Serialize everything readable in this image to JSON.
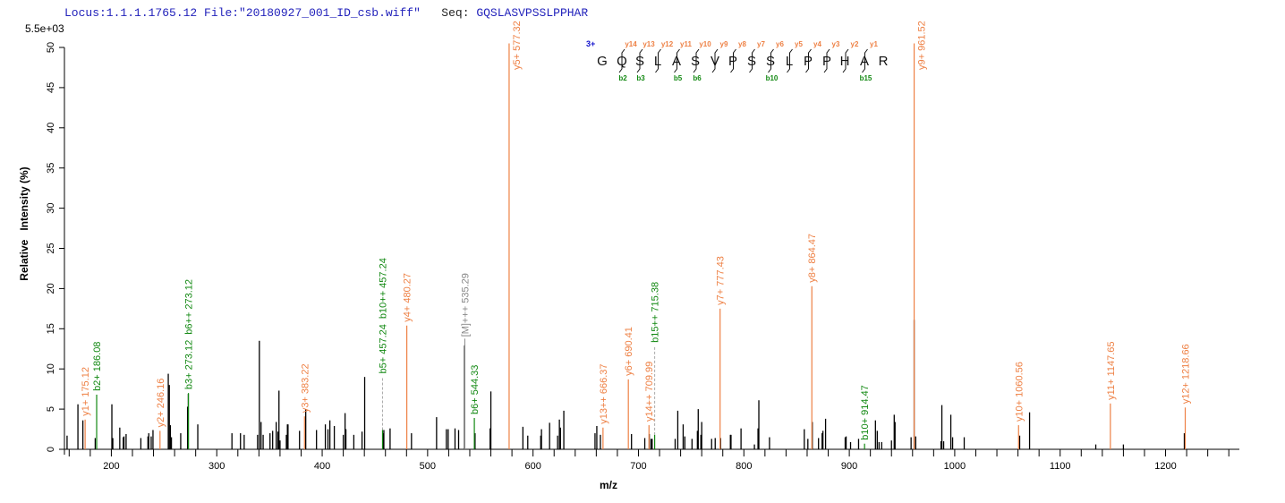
{
  "header": {
    "locus": "Locus:1.1.1.1765.12",
    "file": "File:\"20180927_001_ID_csb.wiff\"",
    "seq_label": "Seq:",
    "seq": "GQSLASVPSSLPPHAR"
  },
  "colors": {
    "y_ion": "#ee8044",
    "b_ion": "#118811",
    "precursor": "#888888",
    "peak": "#000000",
    "header": "#2222bb",
    "charge": "#1111cc"
  },
  "peptide": {
    "charge": "3+",
    "residues": [
      "G",
      "Q",
      "S",
      "L",
      "A",
      "S",
      "V",
      "P",
      "S",
      "S",
      "L",
      "P",
      "P",
      "H",
      "A",
      "R"
    ],
    "y_labels": [
      "y14",
      "y13",
      "y12",
      "y11",
      "y10",
      "y9",
      "y8",
      "y7",
      "y6",
      "y5",
      "y4",
      "y3",
      "y2",
      "y1"
    ],
    "b_labels": [
      "b2",
      "b3",
      "",
      "b5",
      "b6",
      "",
      "",
      "",
      "b10",
      "",
      "",
      "",
      "",
      "b15"
    ]
  },
  "chart_data": {
    "type": "bar",
    "title": "",
    "scale_label": "5.5e+03",
    "xlabel": "m/z",
    "ylabel": "Relative   Intensity (%)",
    "xlim": [
      155.5,
      1270
    ],
    "ylim": [
      0,
      50
    ],
    "xticks": [
      200,
      300,
      400,
      500,
      600,
      700,
      800,
      900,
      1000,
      1100,
      1200
    ],
    "yticks": [
      0,
      5,
      10,
      15,
      20,
      25,
      30,
      35,
      40,
      45,
      50
    ],
    "grid": false,
    "peaks": [
      [
        158,
        1.7
      ],
      [
        168.3,
        5.6
      ],
      [
        173,
        3.6
      ],
      [
        184.7,
        1.4
      ],
      [
        200.5,
        5.6
      ],
      [
        201.4,
        1.4
      ],
      [
        208,
        2.7
      ],
      [
        211.3,
        1.5
      ],
      [
        212,
        1.6
      ],
      [
        214,
        1.9
      ],
      [
        228,
        1.4
      ],
      [
        234.7,
        1.6
      ],
      [
        235.5,
        2
      ],
      [
        237.8,
        1.6
      ],
      [
        239.5,
        2.4
      ],
      [
        254,
        9.4
      ],
      [
        255,
        8
      ],
      [
        256,
        3
      ],
      [
        257,
        1.5
      ],
      [
        265.8,
        2
      ],
      [
        272.3,
        5.3
      ],
      [
        273,
        6.9
      ],
      [
        282,
        3.1
      ],
      [
        314.4,
        2
      ],
      [
        322.5,
        2
      ],
      [
        326,
        1.8
      ],
      [
        338.7,
        1.8
      ],
      [
        340.4,
        13.5
      ],
      [
        342,
        3.4
      ],
      [
        344,
        1.8
      ],
      [
        350.5,
        2
      ],
      [
        353,
        2.3
      ],
      [
        356.4,
        3.4
      ],
      [
        358,
        2.2
      ],
      [
        359,
        7.3
      ],
      [
        360,
        1.1
      ],
      [
        366,
        1.8
      ],
      [
        367,
        3.1
      ],
      [
        367.6,
        3.1
      ],
      [
        378.5,
        2.3
      ],
      [
        384.4,
        5
      ],
      [
        394.6,
        2.4
      ],
      [
        403,
        3.1
      ],
      [
        405.5,
        2.5
      ],
      [
        407.3,
        3.6
      ],
      [
        411.5,
        2.9
      ],
      [
        420,
        1.8
      ],
      [
        421.7,
        4.5
      ],
      [
        422.5,
        2.5
      ],
      [
        430,
        1.8
      ],
      [
        437.8,
        2.2
      ],
      [
        440.3,
        9
      ],
      [
        457.6,
        2
      ],
      [
        458.5,
        2.4
      ],
      [
        464.4,
        2.6
      ],
      [
        484.7,
        2
      ],
      [
        508.5,
        4
      ],
      [
        517.8,
        2.5
      ],
      [
        519.5,
        2.5
      ],
      [
        526,
        2.6
      ],
      [
        529.4,
        2.4
      ],
      [
        535,
        12.9
      ],
      [
        545,
        2
      ],
      [
        559.3,
        2.6
      ],
      [
        560,
        7.2
      ],
      [
        590.4,
        2.8
      ],
      [
        595,
        1.7
      ],
      [
        607.3,
        1.7
      ],
      [
        608,
        2.5
      ],
      [
        615.7,
        3.3
      ],
      [
        623.3,
        1.7
      ],
      [
        625,
        3.7
      ],
      [
        626,
        2.7
      ],
      [
        629.2,
        4.8
      ],
      [
        658.8,
        2
      ],
      [
        660.5,
        2.9
      ],
      [
        663.9,
        1.8
      ],
      [
        693.4,
        1.9
      ],
      [
        706,
        1.4
      ],
      [
        710.3,
        1.9
      ],
      [
        712,
        1.3
      ],
      [
        713,
        1.3
      ],
      [
        734.8,
        1.3
      ],
      [
        737.3,
        4.8
      ],
      [
        742.4,
        3.1
      ],
      [
        744,
        1.6
      ],
      [
        750.8,
        1.3
      ],
      [
        755.9,
        2.3
      ],
      [
        756.7,
        5
      ],
      [
        759.2,
        1.8
      ],
      [
        760,
        3.4
      ],
      [
        769.4,
        1.3
      ],
      [
        772.8,
        1.4
      ],
      [
        777.9,
        1.4
      ],
      [
        787.2,
        1.8
      ],
      [
        787.8,
        1.8
      ],
      [
        797.3,
        2.6
      ],
      [
        810,
        0.6
      ],
      [
        813.4,
        2.6
      ],
      [
        814.2,
        6.1
      ],
      [
        824.3,
        1.5
      ],
      [
        857.3,
        2.5
      ],
      [
        860.7,
        1.3
      ],
      [
        864.9,
        3.4
      ],
      [
        870.8,
        1.4
      ],
      [
        874.2,
        2
      ],
      [
        875,
        2.3
      ],
      [
        877.5,
        3.8
      ],
      [
        896.1,
        1.5
      ],
      [
        897,
        1.6
      ],
      [
        901.2,
        0.9
      ],
      [
        908.8,
        1.3
      ],
      [
        924.8,
        3.6
      ],
      [
        926.5,
        2.3
      ],
      [
        928.2,
        0.9
      ],
      [
        930.7,
        0.9
      ],
      [
        940,
        1.1
      ],
      [
        942.6,
        4.3
      ],
      [
        943.4,
        3.4
      ],
      [
        958.6,
        1.5
      ],
      [
        961.5,
        16.1
      ],
      [
        963,
        1.6
      ],
      [
        987,
        1
      ],
      [
        987.8,
        5.5
      ],
      [
        989.5,
        1
      ],
      [
        996.3,
        4.3
      ],
      [
        998,
        1.5
      ],
      [
        1009,
        1.5
      ],
      [
        1061.6,
        1.7
      ],
      [
        1071,
        4.6
      ],
      [
        1133.8,
        0.6
      ],
      [
        1160,
        0.6
      ],
      [
        1217.8,
        2
      ]
    ],
    "annotations": [
      {
        "mz": 175.12,
        "intensity": 3.7,
        "ion": "y",
        "labels": [
          "y1+ 175.12"
        ]
      },
      {
        "mz": 186.08,
        "intensity": 6.8,
        "ion": "b",
        "labels": [
          "b2+ 186.08"
        ]
      },
      {
        "mz": 246.16,
        "intensity": 2.3,
        "ion": "y",
        "labels": [
          "y2+ 246.16"
        ]
      },
      {
        "mz": 273.12,
        "intensity": 7.0,
        "ion": "b",
        "labels": [
          "b3+ 273.12",
          "b6++ 273.12"
        ]
      },
      {
        "mz": 383.22,
        "intensity": 4.1,
        "ion": "y",
        "labels": [
          "y3+ 383.22"
        ]
      },
      {
        "mz": 457.24,
        "intensity": 2.4,
        "ion": "b",
        "labels": [
          "b5+ 457.24",
          "b10++ 457.24"
        ]
      },
      {
        "mz": 480.27,
        "intensity": 15.4,
        "ion": "y",
        "labels": [
          "y4+ 480.27"
        ]
      },
      {
        "mz": 535.29,
        "intensity": 13.1,
        "ion": "precursor",
        "labels": [
          "[M]+++ 535.29"
        ]
      },
      {
        "mz": 544.33,
        "intensity": 3.9,
        "ion": "b",
        "labels": [
          "b6+ 544.33"
        ]
      },
      {
        "mz": 577.32,
        "intensity": 50.5,
        "ion": "y",
        "labels": [
          "y5+ 577.32"
        ]
      },
      {
        "mz": 666.37,
        "intensity": 2.7,
        "ion": "y",
        "labels": [
          "y13++ 666.37"
        ]
      },
      {
        "mz": 690.41,
        "intensity": 8.7,
        "ion": "y",
        "labels": [
          "y6+ 690.41"
        ]
      },
      {
        "mz": 709.99,
        "intensity": 3.0,
        "ion": "y",
        "labels": [
          "y14++ 709.99"
        ]
      },
      {
        "mz": 715.38,
        "intensity": 1.8,
        "ion": "b",
        "labels": [
          "b15++ 715.38"
        ]
      },
      {
        "mz": 777.43,
        "intensity": 17.5,
        "ion": "y",
        "labels": [
          "y7+ 777.43"
        ]
      },
      {
        "mz": 864.47,
        "intensity": 20.3,
        "ion": "y",
        "labels": [
          "y8+ 864.47"
        ]
      },
      {
        "mz": 914.47,
        "intensity": 0.7,
        "ion": "b",
        "labels": [
          "b10+ 914.47"
        ]
      },
      {
        "mz": 961.52,
        "intensity": 50.5,
        "ion": "y",
        "labels": [
          "y9+ 961.52"
        ]
      },
      {
        "mz": 1060.56,
        "intensity": 3.0,
        "ion": "y",
        "labels": [
          "y10+ 1060.56"
        ]
      },
      {
        "mz": 1147.65,
        "intensity": 5.7,
        "ion": "y",
        "labels": [
          "y11+ 1147.65"
        ]
      },
      {
        "mz": 1218.66,
        "intensity": 5.2,
        "ion": "y",
        "labels": [
          "y12+ 1218.66"
        ]
      }
    ]
  }
}
